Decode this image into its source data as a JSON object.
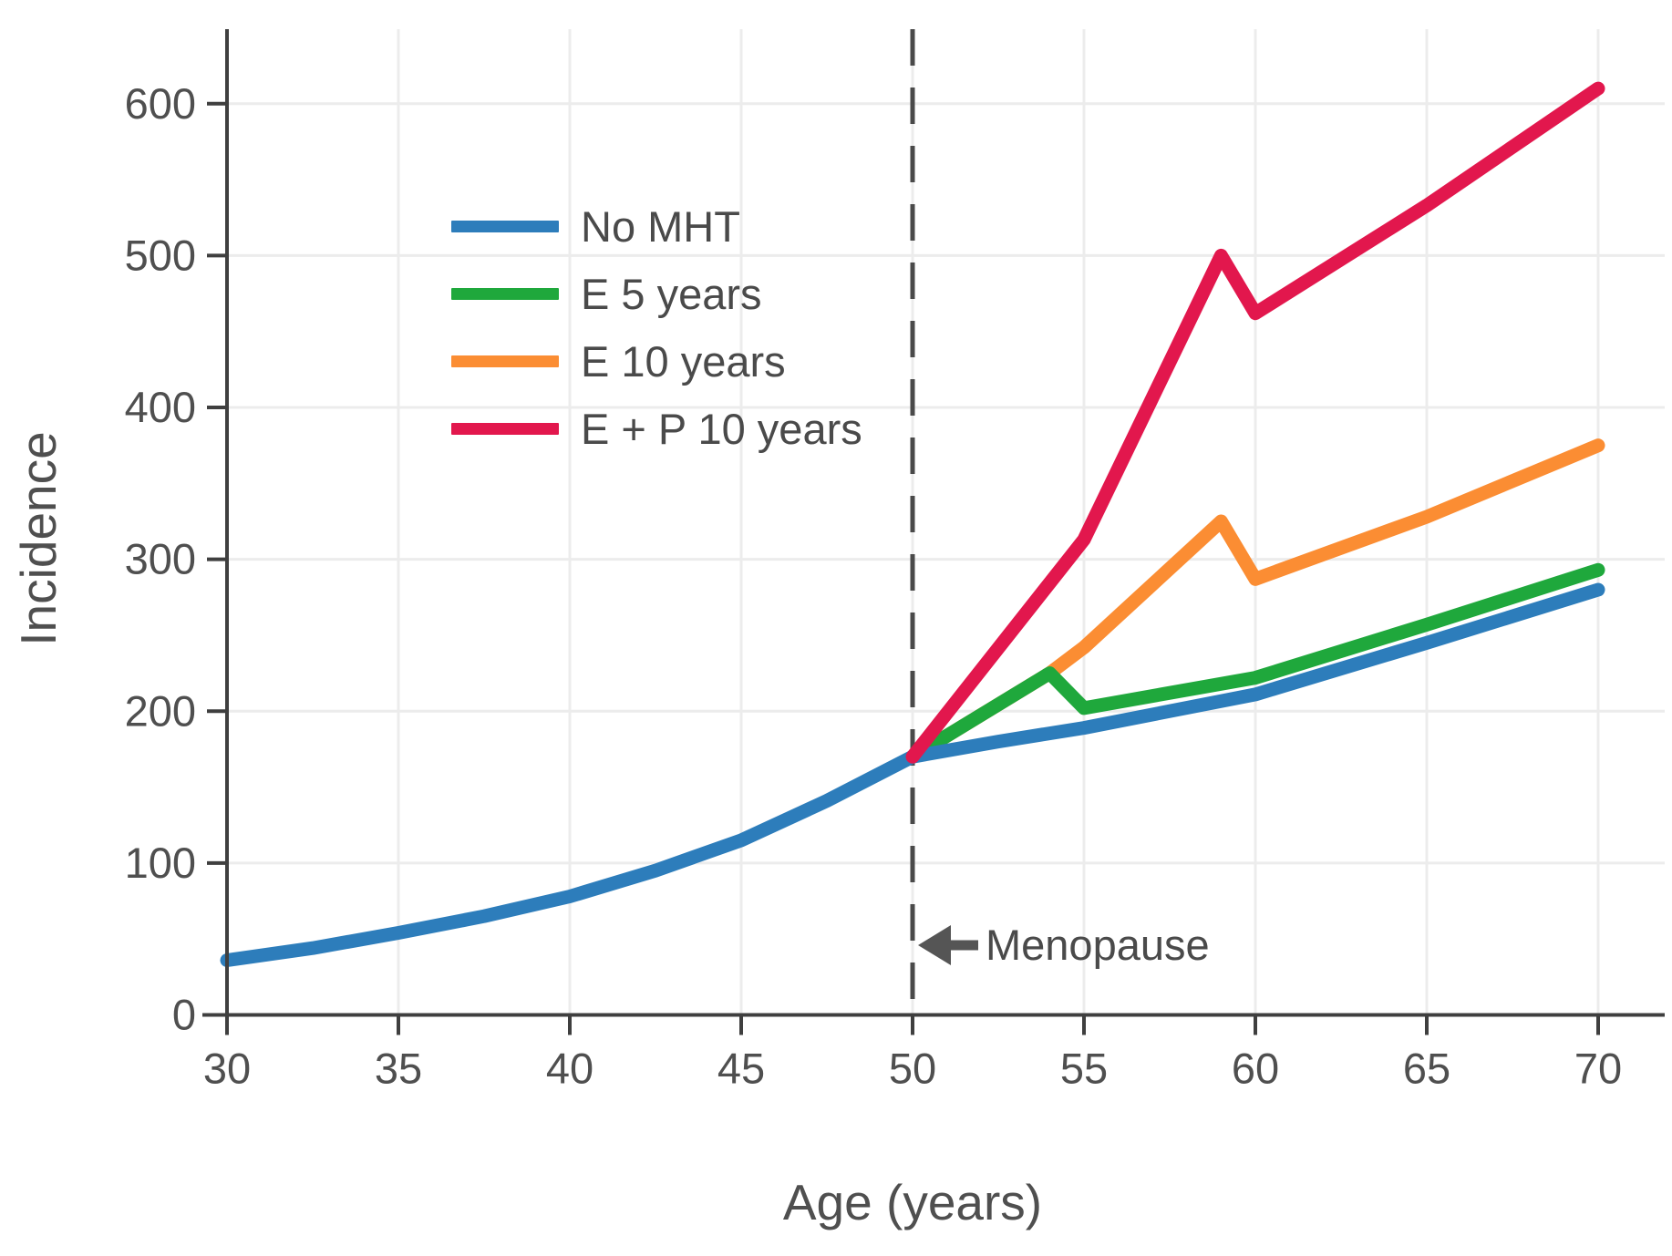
{
  "chart": {
    "ylabel": "Incidence",
    "xlabel": "Age (years)",
    "annotation_label": "Menopause"
  },
  "chart_data": {
    "type": "line",
    "title": "",
    "xlabel": "Age (years)",
    "ylabel": "Incidence",
    "xlim": [
      30,
      70
    ],
    "ylim": [
      0,
      650
    ],
    "x_ticks": [
      30,
      35,
      40,
      45,
      50,
      55,
      60,
      65,
      70
    ],
    "y_ticks": [
      0,
      100,
      200,
      300,
      400,
      500,
      600
    ],
    "grid": true,
    "legend_position": "upper-left-inside",
    "vline": {
      "x": 50,
      "style": "dashed",
      "color": "#4a4a4a",
      "label": "Menopause"
    },
    "annotations": [
      {
        "text": "Menopause",
        "arrow": "left",
        "arrow_points_to_x": 50,
        "y_value": 45
      }
    ],
    "series": [
      {
        "name": "No MHT",
        "color": "#2d7dbb",
        "points": [
          [
            30,
            36
          ],
          [
            32.5,
            44
          ],
          [
            35,
            54
          ],
          [
            37.5,
            65
          ],
          [
            40,
            78
          ],
          [
            42.5,
            95
          ],
          [
            45,
            115
          ],
          [
            47.5,
            141
          ],
          [
            50,
            170
          ],
          [
            52.5,
            180
          ],
          [
            55,
            189
          ],
          [
            60,
            211
          ],
          [
            65,
            245
          ],
          [
            70,
            280
          ]
        ]
      },
      {
        "name": "E 5 years",
        "color": "#1fa83c",
        "points": [
          [
            50,
            170
          ],
          [
            54,
            225
          ],
          [
            55,
            202
          ],
          [
            60,
            222
          ],
          [
            65,
            257
          ],
          [
            70,
            293
          ]
        ]
      },
      {
        "name": "E 10 years",
        "color": "#fb8d33",
        "points": [
          [
            50,
            170
          ],
          [
            54,
            225
          ],
          [
            55,
            242
          ],
          [
            59,
            325
          ],
          [
            60,
            287
          ],
          [
            65,
            328
          ],
          [
            70,
            375
          ]
        ]
      },
      {
        "name": "E + P 10 years",
        "color": "#e2174d",
        "points": [
          [
            50,
            170
          ],
          [
            55,
            313
          ],
          [
            59,
            500
          ],
          [
            60,
            462
          ],
          [
            65,
            533
          ],
          [
            70,
            610
          ]
        ]
      }
    ],
    "colors": {
      "grid": "#ececec",
      "axis": "#3f3f3f",
      "tick_label": "#4f4f4f",
      "annotation": "#555555"
    }
  }
}
